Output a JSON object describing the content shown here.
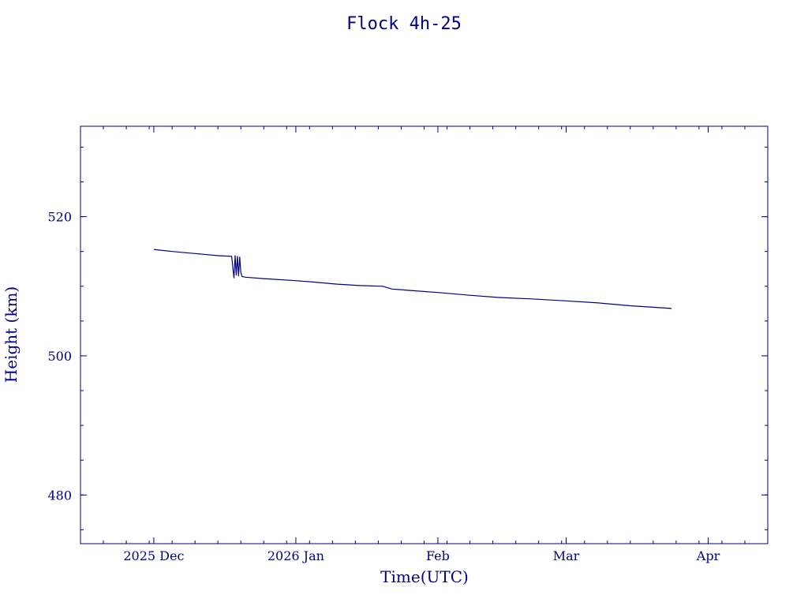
{
  "colors": {
    "ink": "#000080",
    "background": "#ffffff"
  },
  "chart_data": {
    "type": "line",
    "title": "Flock 4h-25",
    "xlabel": "Time(UTC)",
    "ylabel": "Height (km)",
    "x_type": "date",
    "xlim": [
      "2025-11-15",
      "2026-04-14"
    ],
    "ylim": [
      473,
      533
    ],
    "grid": false,
    "x_ticks": [
      {
        "date": "2025-12-01",
        "label": "2025 Dec"
      },
      {
        "date": "2026-01-01",
        "label": "2026 Jan"
      },
      {
        "date": "2026-02-01",
        "label": "Feb"
      },
      {
        "date": "2026-03-01",
        "label": "Mar"
      },
      {
        "date": "2026-04-01",
        "label": "Apr"
      }
    ],
    "y_ticks": [
      {
        "value": 480,
        "label": "480"
      },
      {
        "value": 500,
        "label": "500"
      },
      {
        "value": 520,
        "label": "520"
      }
    ],
    "y_minor_step": 5,
    "x_minor_step_days": 5,
    "series": [
      {
        "name": "",
        "color": "#000080",
        "points": [
          [
            "2025-12-01",
            515.3
          ],
          [
            "2025-12-05",
            515.0
          ],
          [
            "2025-12-10",
            514.7
          ],
          [
            "2025-12-15",
            514.4
          ],
          [
            "2025-12-18",
            514.3
          ],
          [
            "2025-12-18T12:00",
            511.2
          ],
          [
            "2025-12-18T18:00",
            514.4
          ],
          [
            "2025-12-19",
            511.6
          ],
          [
            "2025-12-19T06:00",
            514.3
          ],
          [
            "2025-12-19T12:00",
            511.5
          ],
          [
            "2025-12-19T18:00",
            514.2
          ],
          [
            "2025-12-20",
            512.0
          ],
          [
            "2025-12-20T06:00",
            511.4
          ],
          [
            "2025-12-21",
            511.3
          ],
          [
            "2025-12-25",
            511.1
          ],
          [
            "2026-01-01",
            510.8
          ],
          [
            "2026-01-05",
            510.6
          ],
          [
            "2026-01-10",
            510.3
          ],
          [
            "2026-01-15",
            510.1
          ],
          [
            "2026-01-20",
            510.0
          ],
          [
            "2026-01-22",
            509.6
          ],
          [
            "2026-01-26",
            509.4
          ],
          [
            "2026-02-01",
            509.1
          ],
          [
            "2026-02-08",
            508.7
          ],
          [
            "2026-02-14",
            508.4
          ],
          [
            "2026-02-21",
            508.2
          ],
          [
            "2026-03-01",
            507.9
          ],
          [
            "2026-03-08",
            507.6
          ],
          [
            "2026-03-15",
            507.2
          ],
          [
            "2026-03-22",
            506.9
          ],
          [
            "2026-03-24",
            506.8
          ]
        ]
      }
    ]
  }
}
